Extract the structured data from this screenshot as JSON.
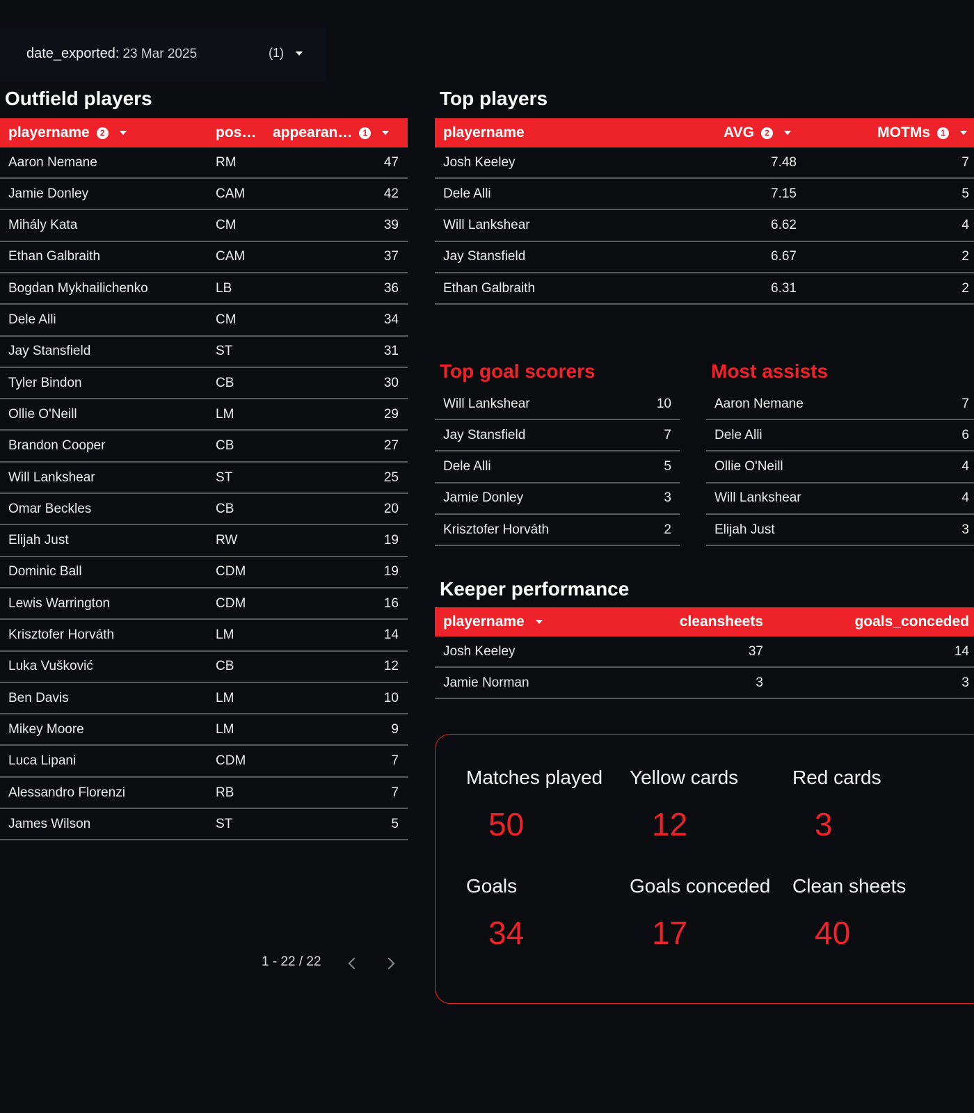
{
  "filter": {
    "label": "date_exported:",
    "value": "23 Mar 2025",
    "count": "(1)"
  },
  "outfield": {
    "title": "Outfield players",
    "columns": [
      {
        "label": "playername",
        "sort_order": "2",
        "sort": true
      },
      {
        "label": "pos…"
      },
      {
        "label": "appearan…",
        "sort_order": "1",
        "sort": true
      }
    ],
    "rows": [
      [
        "Aaron Nemane",
        "RM",
        47
      ],
      [
        "Jamie Donley",
        "CAM",
        42
      ],
      [
        "Mihály Kata",
        "CM",
        39
      ],
      [
        "Ethan Galbraith",
        "CAM",
        37
      ],
      [
        "Bogdan Mykhailichenko",
        "LB",
        36
      ],
      [
        "Dele Alli",
        "CM",
        34
      ],
      [
        "Jay Stansfield",
        "ST",
        31
      ],
      [
        "Tyler Bindon",
        "CB",
        30
      ],
      [
        "Ollie O'Neill",
        "LM",
        29
      ],
      [
        "Brandon Cooper",
        "CB",
        27
      ],
      [
        "Will Lankshear",
        "ST",
        25
      ],
      [
        "Omar Beckles",
        "CB",
        20
      ],
      [
        "Elijah Just",
        "RW",
        19
      ],
      [
        "Dominic Ball",
        "CDM",
        19
      ],
      [
        "Lewis Warrington",
        "CDM",
        16
      ],
      [
        "Krisztofer Horváth",
        "LM",
        14
      ],
      [
        "Luka Vušković",
        "CB",
        12
      ],
      [
        "Ben Davis",
        "LM",
        10
      ],
      [
        "Mikey Moore",
        "LM",
        9
      ],
      [
        "Luca Lipani",
        "CDM",
        7
      ],
      [
        "Alessandro Florenzi",
        "RB",
        7
      ],
      [
        "James Wilson",
        "ST",
        5
      ]
    ],
    "pagination": "1 - 22 / 22"
  },
  "top_players": {
    "title": "Top players",
    "columns": [
      {
        "label": "playername"
      },
      {
        "label": "AVG",
        "sort_order": "2",
        "sort": true
      },
      {
        "label": "MOTMs",
        "sort_order": "1",
        "sort": true
      }
    ],
    "rows": [
      [
        "Josh Keeley",
        7.48,
        7
      ],
      [
        "Dele Alli",
        7.15,
        5
      ],
      [
        "Will Lankshear",
        6.62,
        4
      ],
      [
        "Jay Stansfield",
        6.67,
        2
      ],
      [
        "Ethan Galbraith",
        6.31,
        2
      ]
    ]
  },
  "top_goal_scorers": {
    "title": "Top goal scorers",
    "rows": [
      [
        "Will Lankshear",
        10
      ],
      [
        "Jay Stansfield",
        7
      ],
      [
        "Dele Alli",
        5
      ],
      [
        "Jamie Donley",
        3
      ],
      [
        "Krisztofer Horváth",
        2
      ]
    ]
  },
  "most_assists": {
    "title": "Most assists",
    "rows": [
      [
        "Aaron Nemane",
        7
      ],
      [
        "Dele Alli",
        6
      ],
      [
        "Ollie O'Neill",
        4
      ],
      [
        "Will Lankshear",
        4
      ],
      [
        "Elijah Just",
        3
      ]
    ]
  },
  "keeper_performance": {
    "title": "Keeper performance",
    "columns": [
      {
        "label": "playername",
        "sort": true
      },
      {
        "label": "cleansheets"
      },
      {
        "label": "goals_conceded"
      }
    ],
    "rows": [
      [
        "Josh Keeley",
        37,
        14
      ],
      [
        "Jamie Norman",
        3,
        3
      ]
    ]
  },
  "stats": [
    {
      "label": "Matches played",
      "value": 50
    },
    {
      "label": "Yellow cards",
      "value": 12
    },
    {
      "label": "Red cards",
      "value": 3
    },
    {
      "label": "Goals",
      "value": 34
    },
    {
      "label": "Goals conceded",
      "value": 17
    },
    {
      "label": "Clean sheets",
      "value": 40
    }
  ]
}
